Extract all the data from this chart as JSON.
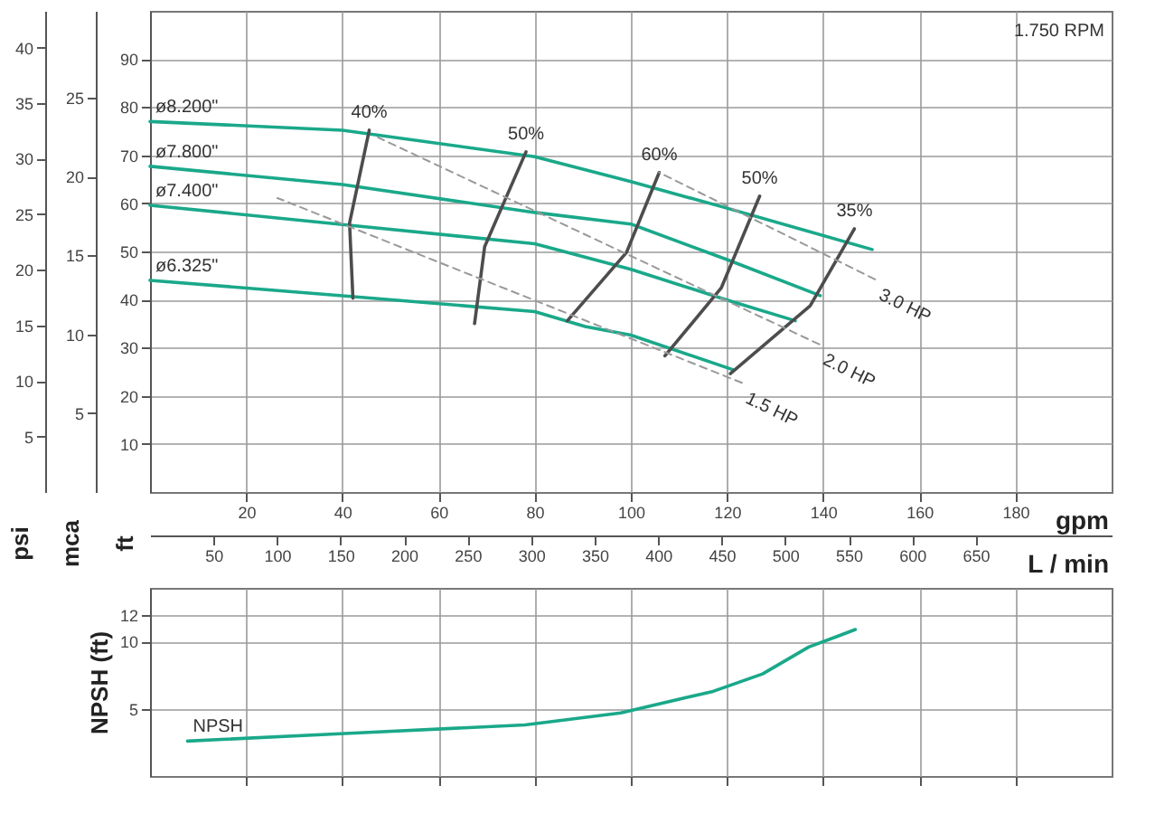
{
  "chart_data": [
    {
      "type": "line",
      "xlabel": "gpm",
      "x2label": "L / min",
      "ylabel": "ft",
      "y2label": "psi",
      "y3label": "mca",
      "xlim": [
        0,
        200
      ],
      "xticks": [
        20,
        40,
        60,
        80,
        100,
        120,
        140,
        160,
        180
      ],
      "x2lim": [
        0,
        757
      ],
      "x2ticks": [
        50,
        100,
        150,
        200,
        250,
        300,
        350,
        400,
        450,
        500,
        550,
        600,
        650
      ],
      "ylim": [
        0,
        100
      ],
      "yticks": [
        10,
        20,
        30,
        40,
        50,
        60,
        70,
        80,
        90
      ],
      "y2lim": [
        0,
        43.3
      ],
      "y2ticks": [
        5,
        10,
        15,
        20,
        25,
        30,
        35,
        40
      ],
      "y3lim": [
        0,
        30.5
      ],
      "y3ticks": [
        5,
        10,
        15,
        20,
        25
      ],
      "grid": true,
      "legend": false,
      "annotations": [
        "1.750 RPM"
      ],
      "series": [
        {
          "name": "ø8.200\"",
          "color": "#1aa88a",
          "line_style": "solid",
          "x": [
            0,
            40,
            80,
            100,
            120,
            150.2
          ],
          "values": [
            77,
            75.2,
            69.7,
            64.5,
            59,
            50.4
          ]
        },
        {
          "name": "ø7.800\"",
          "color": "#1aa88a",
          "line_style": "solid",
          "x": [
            0,
            40,
            80,
            100,
            120,
            139.4
          ],
          "values": [
            67.7,
            63.9,
            58.1,
            55.7,
            48.3,
            40.8
          ]
        },
        {
          "name": "ø7.400\"",
          "color": "#1aa88a",
          "line_style": "solid",
          "x": [
            0,
            40,
            80,
            100,
            120,
            134.2
          ],
          "values": [
            59.6,
            55.6,
            51.6,
            46.3,
            39.9,
            35.6
          ]
        },
        {
          "name": "ø6.325\"",
          "color": "#1aa88a",
          "line_style": "solid",
          "x": [
            0,
            40,
            80,
            90.5,
            100,
            121.3
          ],
          "values": [
            44,
            40.8,
            37.5,
            34.4,
            32.6,
            25.4
          ]
        },
        {
          "name": "40%",
          "color": "#4d4d4d",
          "line_style": "solid",
          "x": [
            45.6,
            41.5,
            42.2
          ],
          "values": [
            75.2,
            55.9,
            40.3
          ]
        },
        {
          "name": "50%",
          "color": "#4d4d4d",
          "line_style": "solid",
          "x": [
            78.2,
            69.6,
            67.5
          ],
          "values": [
            70.7,
            51,
            35
          ]
        },
        {
          "name": "60%",
          "color": "#4d4d4d",
          "line_style": "solid",
          "x": [
            105.9,
            99.1,
            86.8
          ],
          "values": [
            66.4,
            49.8,
            35.6
          ]
        },
        {
          "name": "50%",
          "color": "#4d4d4d",
          "line_style": "solid",
          "x": [
            126.8,
            118.8,
            107.1
          ],
          "values": [
            61.5,
            42.4,
            28.3
          ]
        },
        {
          "name": "35%",
          "color": "#4d4d4d",
          "line_style": "solid",
          "x": [
            146.5,
            137.3,
            120.7
          ],
          "values": [
            54.7,
            38.7,
            24.6
          ]
        },
        {
          "name": "3.0 HP",
          "color": "#999999",
          "line_style": "dashed",
          "x": [
            150.8,
            105.9
          ],
          "values": [
            44.2,
            66.4
          ]
        },
        {
          "name": "2.0 HP",
          "color": "#999999",
          "line_style": "dashed",
          "x": [
            139.2,
            47.4
          ],
          "values": [
            30.7,
            73.7
          ]
        },
        {
          "name": "1.5 HP",
          "color": "#999999",
          "line_style": "dashed",
          "x": [
            123.1,
            26.5
          ],
          "values": [
            22.7,
            61.1
          ]
        }
      ]
    },
    {
      "type": "line",
      "ylabel": "NPSH (ft)",
      "xlim": [
        0,
        200
      ],
      "xticks": [
        {
          "value": 20,
          "label": null
        },
        {
          "value": 40,
          "label": null
        },
        {
          "value": 60,
          "label": null
        },
        {
          "value": 80,
          "label": null
        },
        {
          "value": 100,
          "label": null
        },
        {
          "value": 120,
          "label": null
        },
        {
          "value": 140,
          "label": null
        },
        {
          "value": 160,
          "label": null
        },
        {
          "value": 180,
          "label": null
        }
      ],
      "ylim": [
        0,
        14
      ],
      "yticks": [
        5,
        10,
        12
      ],
      "tick_labels": "y",
      "grid": true,
      "legend": false,
      "series": [
        {
          "name": "NPSH",
          "color": "#1aa88a",
          "line_style": "solid",
          "x": [
            7.8,
            42.5,
            78,
            97.9,
            117.1,
            127.4,
            137,
            143,
            146.7
          ],
          "values": [
            2.6,
            3.2,
            3.8,
            4.7,
            6.3,
            7.6,
            9.6,
            10.4,
            10.9
          ]
        }
      ]
    }
  ]
}
